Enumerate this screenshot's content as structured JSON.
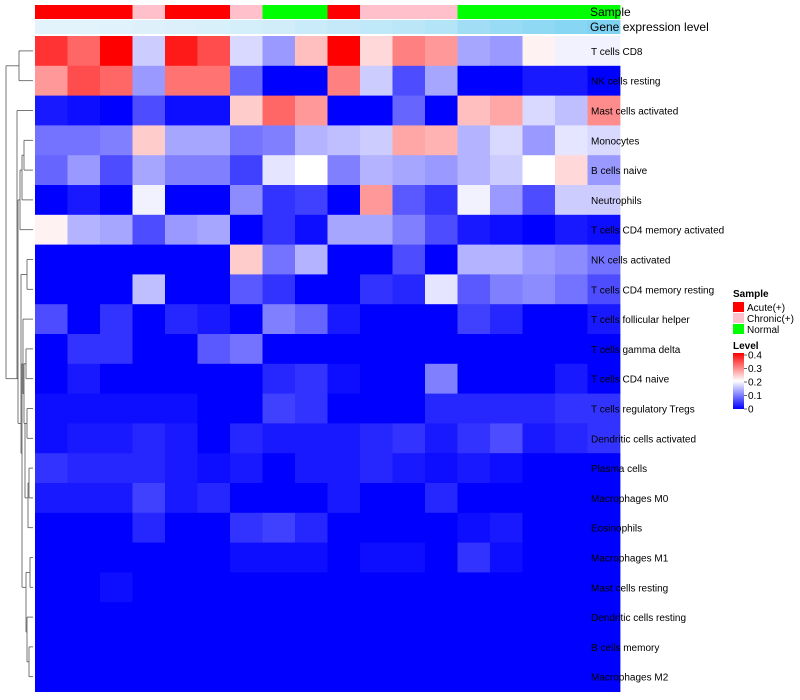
{
  "chart_data": {
    "type": "heatmap",
    "title": "",
    "annotation_tracks": [
      "Sample",
      "Gene expression level"
    ],
    "sample_groups": [
      "Acute",
      "Acute",
      "Acute",
      "Chronic",
      "Acute",
      "Acute",
      "Chronic",
      "Normal",
      "Normal",
      "Acute",
      "Chronic",
      "Chronic",
      "Chronic",
      "Normal",
      "Normal",
      "Normal",
      "Normal",
      "Normal"
    ],
    "expression_level": [
      0.02,
      0.03,
      0.04,
      0.06,
      0.08,
      0.1,
      0.12,
      0.16,
      0.2,
      0.24,
      0.28,
      0.32,
      0.36,
      0.5,
      0.56,
      0.62,
      0.68,
      0.74
    ],
    "rows": [
      "T cells CD8",
      "NK cells resting",
      "Mast cells activated",
      "Monocytes",
      "B cells naive",
      "Neutrophils",
      "T cells CD4 memory activated",
      "NK cells activated",
      "T cells CD4 memory resting",
      "T cells follicular helper",
      "T cells gamma delta",
      "T cells CD4 naive",
      "T cells regulatory  Tregs",
      "Dendritic cells activated",
      "Plasma cells",
      "Macrophages M0",
      "Eosinophils",
      "Macrophages M1",
      "Mast cells resting",
      "Dendritic cells resting",
      "B cells memory",
      "Macrophages M2"
    ],
    "values": [
      [
        0.36,
        0.32,
        0.4,
        0.16,
        0.38,
        0.34,
        0.17,
        0.12,
        0.25,
        0.4,
        0.23,
        0.3,
        0.28,
        0.13,
        0.12,
        0.21,
        0.19,
        0.19
      ],
      [
        0.28,
        0.34,
        0.32,
        0.12,
        0.31,
        0.31,
        0.08,
        0.0,
        0.0,
        0.3,
        0.16,
        0.06,
        0.13,
        0.0,
        0.0,
        0.02,
        0.02,
        0.0
      ],
      [
        0.02,
        0.01,
        0.0,
        0.06,
        0.01,
        0.01,
        0.24,
        0.32,
        0.28,
        0.0,
        0.0,
        0.08,
        0.0,
        0.25,
        0.27,
        0.17,
        0.15,
        0.29
      ],
      [
        0.09,
        0.09,
        0.1,
        0.24,
        0.13,
        0.13,
        0.09,
        0.1,
        0.14,
        0.15,
        0.16,
        0.27,
        0.26,
        0.14,
        0.17,
        0.12,
        0.18,
        0.17
      ],
      [
        0.08,
        0.12,
        0.06,
        0.13,
        0.1,
        0.1,
        0.05,
        0.18,
        0.2,
        0.1,
        0.14,
        0.13,
        0.12,
        0.14,
        0.16,
        0.2,
        0.23,
        0.12
      ],
      [
        0.0,
        0.02,
        0.0,
        0.19,
        0.0,
        0.0,
        0.11,
        0.04,
        0.05,
        0.0,
        0.28,
        0.07,
        0.04,
        0.19,
        0.12,
        0.06,
        0.16,
        0.16
      ],
      [
        0.21,
        0.14,
        0.13,
        0.06,
        0.12,
        0.13,
        0.0,
        0.04,
        0.01,
        0.13,
        0.13,
        0.1,
        0.06,
        0.02,
        0.01,
        0.0,
        0.02,
        0.01
      ],
      [
        0.0,
        0.0,
        0.0,
        0.0,
        0.0,
        0.0,
        0.24,
        0.09,
        0.14,
        0.0,
        0.0,
        0.06,
        0.0,
        0.14,
        0.14,
        0.12,
        0.11,
        0.09
      ],
      [
        0.0,
        0.0,
        0.0,
        0.15,
        0.0,
        0.0,
        0.07,
        0.04,
        0.0,
        0.0,
        0.04,
        0.03,
        0.18,
        0.07,
        0.1,
        0.11,
        0.09,
        0.06
      ],
      [
        0.06,
        0.0,
        0.04,
        0.0,
        0.03,
        0.02,
        0.0,
        0.1,
        0.08,
        0.02,
        0.0,
        0.0,
        0.0,
        0.05,
        0.03,
        0.0,
        0.0,
        0.02
      ],
      [
        0.0,
        0.04,
        0.04,
        0.0,
        0.0,
        0.07,
        0.09,
        0.0,
        0.0,
        0.0,
        0.0,
        0.0,
        0.0,
        0.0,
        0.0,
        0.0,
        0.0,
        0.0
      ],
      [
        0.0,
        0.02,
        0.0,
        0.0,
        0.0,
        0.0,
        0.0,
        0.03,
        0.04,
        0.01,
        0.0,
        0.0,
        0.1,
        0.0,
        0.0,
        0.0,
        0.02,
        0.0
      ],
      [
        0.01,
        0.01,
        0.01,
        0.01,
        0.01,
        0.0,
        0.0,
        0.05,
        0.04,
        0.0,
        0.0,
        0.0,
        0.03,
        0.03,
        0.03,
        0.03,
        0.04,
        0.04
      ],
      [
        0.01,
        0.02,
        0.02,
        0.03,
        0.02,
        0.0,
        0.03,
        0.02,
        0.02,
        0.02,
        0.03,
        0.04,
        0.02,
        0.04,
        0.06,
        0.02,
        0.03,
        0.04
      ],
      [
        0.04,
        0.03,
        0.03,
        0.03,
        0.02,
        0.01,
        0.02,
        0.0,
        0.02,
        0.02,
        0.03,
        0.02,
        0.01,
        0.02,
        0.01,
        0.0,
        0.0,
        0.0
      ],
      [
        0.02,
        0.02,
        0.02,
        0.05,
        0.02,
        0.03,
        0.0,
        0.0,
        0.0,
        0.02,
        0.0,
        0.0,
        0.03,
        0.0,
        0.0,
        0.0,
        0.0,
        0.0
      ],
      [
        0.0,
        0.0,
        0.0,
        0.03,
        0.0,
        0.0,
        0.04,
        0.05,
        0.03,
        0.0,
        0.0,
        0.0,
        0.0,
        0.01,
        0.02,
        0.0,
        0.0,
        0.0
      ],
      [
        0.0,
        0.0,
        0.0,
        0.0,
        0.0,
        0.0,
        0.01,
        0.01,
        0.01,
        0.0,
        0.01,
        0.01,
        0.0,
        0.04,
        0.01,
        0.0,
        0.0,
        0.0
      ],
      [
        0.0,
        0.0,
        0.01,
        0.0,
        0.0,
        0.0,
        0.0,
        0.0,
        0.0,
        0.0,
        0.0,
        0.0,
        0.0,
        0.0,
        0.0,
        0.0,
        0.0,
        0.0
      ],
      [
        0.0,
        0.0,
        0.0,
        0.0,
        0.0,
        0.0,
        0.0,
        0.0,
        0.0,
        0.0,
        0.0,
        0.0,
        0.0,
        0.0,
        0.0,
        0.0,
        0.0,
        0.0
      ],
      [
        0.0,
        0.0,
        0.0,
        0.0,
        0.0,
        0.0,
        0.0,
        0.0,
        0.0,
        0.0,
        0.0,
        0.0,
        0.0,
        0.0,
        0.0,
        0.0,
        0.0,
        0.0
      ],
      [
        0.0,
        0.0,
        0.0,
        0.0,
        0.0,
        0.0,
        0.0,
        0.0,
        0.0,
        0.0,
        0.0,
        0.0,
        0.0,
        0.0,
        0.0,
        0.0,
        0.0,
        0.0
      ]
    ],
    "value_range": [
      0,
      0.4
    ],
    "color_scale": [
      "#0000ff",
      "#ffffff",
      "#ff0000"
    ],
    "legend_sample": {
      "title": "Sample",
      "entries": [
        {
          "label": "Acute(+)",
          "key": "Acute",
          "color": "#ff0000"
        },
        {
          "label": "Chronic(+)",
          "key": "Chronic",
          "color": "#ffc0cb"
        },
        {
          "label": "Normal",
          "key": "Normal",
          "color": "#00ff00"
        }
      ]
    },
    "legend_level": {
      "title": "Level",
      "ticks": [
        "0.4",
        "0.3",
        "0.2",
        "0.1",
        "0"
      ]
    }
  }
}
